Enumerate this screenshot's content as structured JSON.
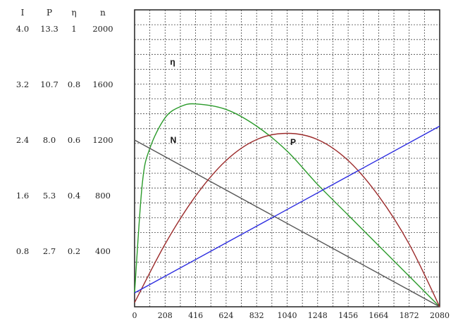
{
  "chart_data": {
    "type": "line",
    "x_ticks": [
      "0",
      "208",
      "416",
      "624",
      "832",
      "1040",
      "1248",
      "1456",
      "1664",
      "1872",
      "2080"
    ],
    "xlim": [
      0,
      2080
    ],
    "left_axes": {
      "headers": [
        "I",
        "P",
        "η",
        "n"
      ],
      "rows": [
        [
          "4.0",
          "13.3",
          "1",
          "2000"
        ],
        [
          "3.2",
          "10.7",
          "0.8",
          "1600"
        ],
        [
          "2.4",
          "8.0",
          "0.6",
          "1200"
        ],
        [
          "1.6",
          "5.3",
          "0.4",
          "800"
        ],
        [
          "0.8",
          "2.7",
          "0.2",
          "400"
        ]
      ]
    },
    "grid": true,
    "curve_labels": [
      "η",
      "N",
      "P"
    ],
    "series": [
      {
        "color": "#2a9a2a",
        "x": [
          0,
          52,
          104,
          208,
          312,
          416,
          624,
          832,
          1040,
          1248,
          1456,
          1664,
          1872,
          2080
        ],
        "y": [
          0.05,
          0.44,
          0.57,
          0.68,
          0.72,
          0.73,
          0.71,
          0.65,
          0.56,
          0.44,
          0.33,
          0.22,
          0.11,
          0.0
        ]
      },
      {
        "color": "#555555",
        "x": [
          0,
          2080
        ],
        "y": [
          1200,
          0
        ]
      },
      {
        "color": "#9b2a2a",
        "x": [
          0,
          208,
          416,
          624,
          832,
          1040,
          1248,
          1456,
          1664,
          1872,
          2080
        ],
        "y": [
          0.2,
          3.0,
          5.3,
          7.0,
          8.0,
          8.3,
          8.0,
          7.0,
          5.3,
          3.0,
          0.0
        ]
      },
      {
        "color": "#2b2be0",
        "x": [
          0,
          2080
        ],
        "y": [
          0.2,
          2.6
        ]
      }
    ]
  }
}
